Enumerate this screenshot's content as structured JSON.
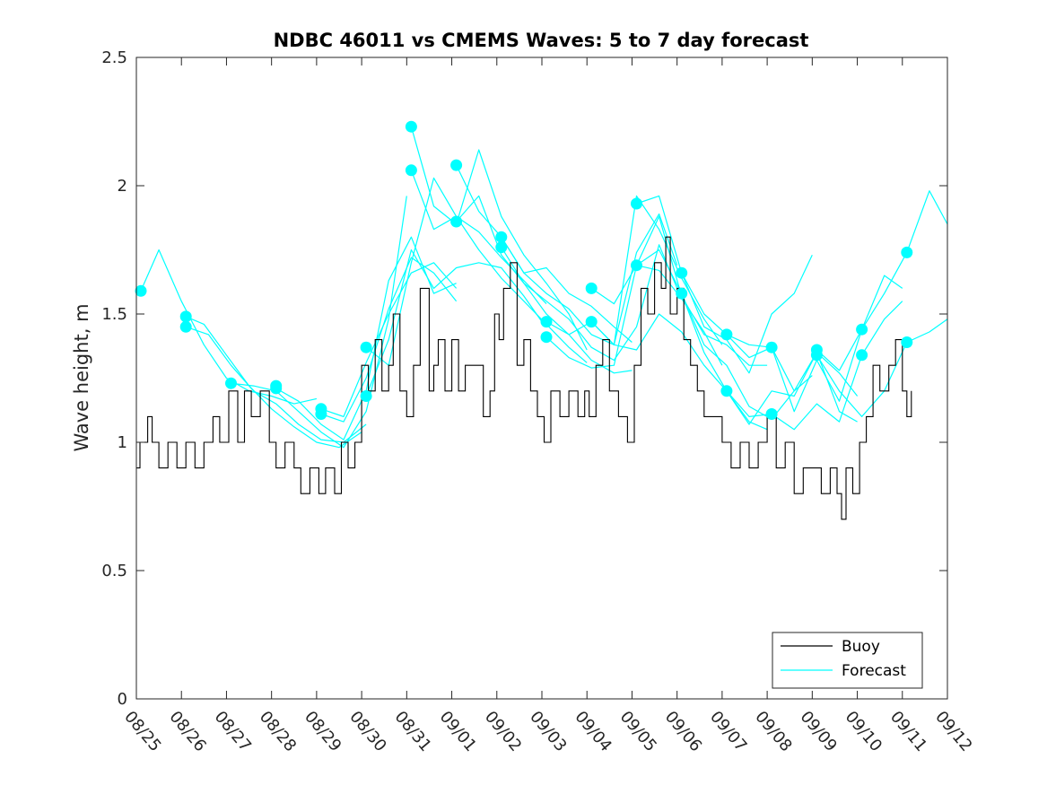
{
  "chart_data": {
    "type": "line",
    "title": "NDBC 46011 vs CMEMS Waves: 5 to 7 day forecast",
    "xlabel": "",
    "ylabel": "Wave height, m",
    "x_unit": "days since 08/25",
    "xlim": [
      0,
      18
    ],
    "ylim": [
      0,
      2.5
    ],
    "yticks": [
      0,
      0.5,
      1,
      1.5,
      2,
      2.5
    ],
    "ytick_labels": [
      "0",
      "0.5",
      "1",
      "1.5",
      "2",
      "2.5"
    ],
    "xticks": [
      0,
      1,
      2,
      3,
      4,
      5,
      6,
      7,
      8,
      9,
      10,
      11,
      12,
      13,
      14,
      15,
      16,
      17,
      18
    ],
    "xtick_labels": [
      "08/25",
      "08/26",
      "08/27",
      "08/28",
      "08/29",
      "08/30",
      "08/31",
      "09/01",
      "09/02",
      "09/03",
      "09/04",
      "09/05",
      "09/06",
      "09/07",
      "09/08",
      "09/09",
      "09/10",
      "09/11",
      "09/12"
    ],
    "grid": false,
    "legend_position": "bottom-right",
    "colors": {
      "buoy": "#000000",
      "forecast": "#00ffff",
      "axes": "#262626"
    },
    "series": [
      {
        "name": "Buoy",
        "style": "step",
        "x": [
          0,
          0.08,
          0.25,
          0.35,
          0.5,
          0.7,
          0.9,
          1.1,
          1.3,
          1.5,
          1.7,
          1.85,
          2.05,
          2.25,
          2.4,
          2.55,
          2.75,
          2.95,
          3.1,
          3.3,
          3.5,
          3.65,
          3.85,
          4.05,
          4.2,
          4.4,
          4.45,
          4.55,
          4.7,
          4.85,
          5.0,
          5.15,
          5.3,
          5.45,
          5.6,
          5.7,
          5.85,
          6.0,
          6.15,
          6.3,
          6.5,
          6.6,
          6.7,
          6.85,
          7.0,
          7.15,
          7.3,
          7.5,
          7.7,
          7.85,
          7.95,
          8.05,
          8.15,
          8.3,
          8.45,
          8.6,
          8.75,
          8.9,
          9.05,
          9.2,
          9.4,
          9.6,
          9.8,
          9.95,
          10.05,
          10.2,
          10.35,
          10.5,
          10.7,
          10.9,
          11.05,
          11.2,
          11.35,
          11.5,
          11.65,
          11.75,
          11.85,
          12.0,
          12.15,
          12.3,
          12.45,
          12.6,
          12.8,
          13.0,
          13.2,
          13.4,
          13.6,
          13.8,
          14.0,
          14.2,
          14.4,
          14.6,
          14.8,
          15.0,
          15.2,
          15.4,
          15.55,
          15.65,
          15.75,
          15.9,
          16.05,
          16.2,
          16.35,
          16.5,
          16.7,
          16.85,
          17.0,
          17.1,
          17.2
        ],
        "y": [
          0.9,
          1.0,
          1.1,
          1.0,
          0.9,
          1.0,
          0.9,
          1.0,
          0.9,
          1.0,
          1.1,
          1.0,
          1.2,
          1.0,
          1.2,
          1.1,
          1.2,
          1.0,
          0.9,
          1.0,
          0.9,
          0.8,
          0.9,
          0.8,
          0.9,
          0.8,
          0.8,
          1.0,
          0.9,
          1.0,
          1.3,
          1.2,
          1.4,
          1.2,
          1.3,
          1.5,
          1.2,
          1.1,
          1.3,
          1.6,
          1.2,
          1.3,
          1.4,
          1.2,
          1.4,
          1.2,
          1.3,
          1.3,
          1.1,
          1.2,
          1.5,
          1.4,
          1.6,
          1.7,
          1.3,
          1.4,
          1.2,
          1.1,
          1.0,
          1.2,
          1.1,
          1.2,
          1.1,
          1.2,
          1.1,
          1.3,
          1.4,
          1.2,
          1.1,
          1.0,
          1.3,
          1.6,
          1.5,
          1.7,
          1.6,
          1.8,
          1.5,
          1.6,
          1.4,
          1.3,
          1.2,
          1.1,
          1.1,
          1.0,
          0.9,
          1.0,
          0.9,
          1.0,
          1.1,
          0.9,
          1.0,
          0.8,
          0.9,
          0.9,
          0.8,
          0.9,
          0.8,
          0.7,
          0.9,
          0.8,
          1.0,
          1.1,
          1.3,
          1.2,
          1.3,
          1.4,
          1.2,
          1.1,
          1.2
        ]
      },
      {
        "name": "Forecast",
        "style": "line",
        "segments": [
          {
            "x": [
              0.1,
              0.5,
              1.0,
              1.5,
              2.0,
              2.5,
              3.0,
              3.5,
              4.0
            ],
            "y": [
              1.59,
              1.75,
              1.55,
              1.38,
              1.25,
              1.2,
              1.18,
              1.15,
              1.17
            ]
          },
          {
            "x": [
              1.1,
              1.5,
              2.0,
              2.5,
              3.0,
              3.5,
              4.0,
              4.5,
              5.0
            ],
            "y": [
              1.49,
              1.46,
              1.34,
              1.22,
              1.13,
              1.06,
              1.0,
              0.98,
              1.04
            ]
          },
          {
            "x": [
              1.1,
              1.6,
              2.1,
              2.6,
              3.1,
              3.6,
              4.1,
              4.6,
              5.1
            ],
            "y": [
              1.45,
              1.42,
              1.3,
              1.2,
              1.15,
              1.07,
              1.01,
              1.0,
              1.07
            ]
          },
          {
            "x": [
              2.1,
              2.6,
              3.1,
              3.6,
              4.1,
              4.6,
              5.1,
              5.6,
              6.0
            ],
            "y": [
              1.23,
              1.22,
              1.2,
              1.12,
              1.04,
              0.98,
              1.12,
              1.48,
              1.96
            ]
          },
          {
            "x": [
              3.1,
              3.6,
              4.1,
              4.6,
              5.1,
              5.6,
              6.1,
              6.6,
              7.1
            ],
            "y": [
              1.21,
              1.16,
              1.07,
              1.01,
              1.2,
              1.63,
              1.8,
              1.58,
              1.62
            ]
          },
          {
            "x": [
              4.1,
              4.6,
              5.1,
              5.6,
              6.1,
              6.6,
              7.1
            ],
            "y": [
              1.13,
              1.1,
              1.31,
              1.5,
              1.66,
              1.7,
              1.6
            ]
          },
          {
            "x": [
              4.1,
              4.6,
              5.1,
              5.6,
              6.1,
              6.6,
              7.1
            ],
            "y": [
              1.11,
              1.08,
              1.25,
              1.52,
              1.72,
              1.66,
              1.55
            ]
          },
          {
            "x": [
              5.1,
              5.6,
              6.1,
              6.6,
              7.1,
              7.6,
              8.1,
              8.6,
              9.1
            ],
            "y": [
              1.37,
              1.3,
              1.7,
              2.03,
              1.88,
              1.82,
              1.72,
              1.63,
              1.54
            ]
          },
          {
            "x": [
              5.1,
              5.6,
              6.1,
              6.6,
              7.1,
              7.6,
              8.1,
              8.6,
              9.0
            ],
            "y": [
              1.18,
              1.4,
              1.75,
              1.6,
              1.68,
              1.7,
              1.68,
              1.57,
              1.47
            ]
          },
          {
            "x": [
              6.1,
              6.6,
              7.1,
              7.6,
              8.1,
              8.6,
              9.1,
              9.6,
              10.0
            ],
            "y": [
              2.23,
              1.92,
              1.85,
              2.14,
              1.88,
              1.73,
              1.62,
              1.5,
              1.36
            ]
          },
          {
            "x": [
              6.1,
              6.6,
              7.1,
              7.6,
              8.1,
              8.6,
              9.1,
              9.6,
              10.0
            ],
            "y": [
              2.06,
              1.83,
              1.88,
              1.75,
              1.64,
              1.55,
              1.46,
              1.37,
              1.31
            ]
          },
          {
            "x": [
              7.1,
              7.6,
              8.1,
              8.6,
              9.1,
              9.6,
              10.1,
              10.6,
              11.0
            ],
            "y": [
              2.08,
              1.9,
              1.8,
              1.66,
              1.68,
              1.58,
              1.53,
              1.45,
              1.39
            ]
          },
          {
            "x": [
              7.1,
              7.6,
              8.1,
              8.6,
              9.1,
              9.6,
              10.1,
              10.6,
              11.0
            ],
            "y": [
              1.86,
              1.96,
              1.73,
              1.62,
              1.5,
              1.42,
              1.32,
              1.27,
              1.28
            ]
          },
          {
            "x": [
              8.1,
              8.6,
              9.1,
              9.6,
              10.1,
              10.6,
              11.1,
              11.6,
              12.0
            ],
            "y": [
              1.8,
              1.66,
              1.58,
              1.52,
              1.42,
              1.38,
              1.74,
              1.89,
              1.69
            ]
          },
          {
            "x": [
              8.1,
              8.6,
              9.1,
              9.6,
              10.1,
              10.6,
              11.1,
              11.6,
              12.0
            ],
            "y": [
              1.76,
              1.62,
              1.55,
              1.48,
              1.37,
              1.32,
              1.45,
              1.77,
              1.6
            ]
          },
          {
            "x": [
              9.1,
              9.6,
              10.1,
              10.6,
              11.1,
              11.6,
              12.1,
              12.6,
              13.0
            ],
            "y": [
              1.47,
              1.42,
              1.47,
              1.38,
              1.96,
              1.83,
              1.64,
              1.48,
              1.38
            ]
          },
          {
            "x": [
              9.1,
              9.6,
              10.1,
              10.6,
              11.1,
              11.6,
              12.1,
              12.6,
              13.0
            ],
            "y": [
              1.41,
              1.33,
              1.29,
              1.3,
              1.69,
              1.67,
              1.56,
              1.43,
              1.3
            ]
          },
          {
            "x": [
              10.1,
              10.6,
              11.1,
              11.6,
              12.1,
              12.6,
              13.1,
              13.6,
              14.0
            ],
            "y": [
              1.6,
              1.54,
              1.69,
              1.88,
              1.57,
              1.42,
              1.38,
              1.3,
              1.3
            ]
          },
          {
            "x": [
              10.1,
              10.6,
              11.1,
              11.6,
              12.1,
              12.6,
              13.1,
              13.6,
              14.0
            ],
            "y": [
              1.47,
              1.38,
              1.36,
              1.5,
              1.43,
              1.3,
              1.2,
              1.08,
              1.05
            ]
          },
          {
            "x": [
              11.1,
              11.6,
              12.1,
              12.6,
              13.1,
              13.6,
              14.1,
              14.6,
              15.0
            ],
            "y": [
              1.93,
              1.96,
              1.66,
              1.45,
              1.4,
              1.27,
              1.5,
              1.58,
              1.73
            ]
          },
          {
            "x": [
              11.1,
              11.6,
              12.1,
              12.6,
              13.1,
              13.6,
              14.1,
              14.6,
              15.0
            ],
            "y": [
              1.69,
              1.75,
              1.58,
              1.38,
              1.3,
              1.14,
              1.09,
              1.2,
              1.26
            ]
          },
          {
            "x": [
              12.1,
              12.6,
              13.1,
              13.6,
              14.1,
              14.6,
              15.1,
              15.6,
              16.0
            ],
            "y": [
              1.66,
              1.5,
              1.42,
              1.33,
              1.37,
              1.2,
              1.35,
              1.27,
              1.18
            ]
          },
          {
            "x": [
              12.1,
              12.6,
              13.1,
              13.6,
              14.1,
              14.6,
              15.1,
              15.6,
              16.0
            ],
            "y": [
              1.58,
              1.35,
              1.2,
              1.07,
              1.2,
              1.18,
              1.35,
              1.12,
              1.08
            ]
          },
          {
            "x": [
              13.1,
              13.6,
              14.1,
              14.6,
              15.1,
              15.6,
              16.1,
              16.6,
              17.0
            ],
            "y": [
              1.42,
              1.38,
              1.37,
              1.12,
              1.32,
              1.16,
              1.44,
              1.65,
              1.6
            ]
          },
          {
            "x": [
              13.1,
              13.6,
              14.1,
              14.6,
              15.1,
              15.6,
              16.1,
              16.6,
              17.0
            ],
            "y": [
              1.2,
              1.1,
              1.11,
              1.05,
              1.15,
              1.08,
              1.34,
              1.48,
              1.55
            ]
          },
          {
            "x": [
              15.1,
              15.6,
              16.1,
              16.6,
              17.1,
              17.6,
              18.0
            ],
            "y": [
              1.36,
              1.28,
              1.44,
              1.58,
              1.74,
              1.98,
              1.85
            ]
          },
          {
            "x": [
              15.1,
              15.6,
              16.1,
              16.6,
              17.1,
              17.6,
              18.0
            ],
            "y": [
              1.34,
              1.2,
              1.1,
              1.2,
              1.39,
              1.43,
              1.48
            ]
          }
        ],
        "markers_x": [
          0.1,
          1.1,
          1.1,
          2.1,
          3.1,
          3.1,
          4.1,
          4.1,
          5.1,
          5.1,
          6.1,
          6.1,
          7.1,
          7.1,
          8.1,
          8.1,
          9.1,
          9.1,
          10.1,
          10.1,
          11.1,
          11.1,
          12.1,
          12.1,
          13.1,
          13.1,
          14.1,
          14.1,
          15.1,
          15.1,
          16.1,
          16.1,
          17.1,
          17.1
        ],
        "markers_y": [
          1.59,
          1.49,
          1.45,
          1.23,
          1.22,
          1.21,
          1.13,
          1.11,
          1.37,
          1.18,
          2.23,
          2.06,
          2.08,
          1.86,
          1.8,
          1.76,
          1.47,
          1.41,
          1.6,
          1.47,
          1.93,
          1.69,
          1.66,
          1.58,
          1.42,
          1.2,
          1.37,
          1.11,
          1.36,
          1.34,
          1.44,
          1.34,
          1.74,
          1.39
        ]
      }
    ],
    "legend": [
      "Buoy",
      "Forecast"
    ]
  }
}
